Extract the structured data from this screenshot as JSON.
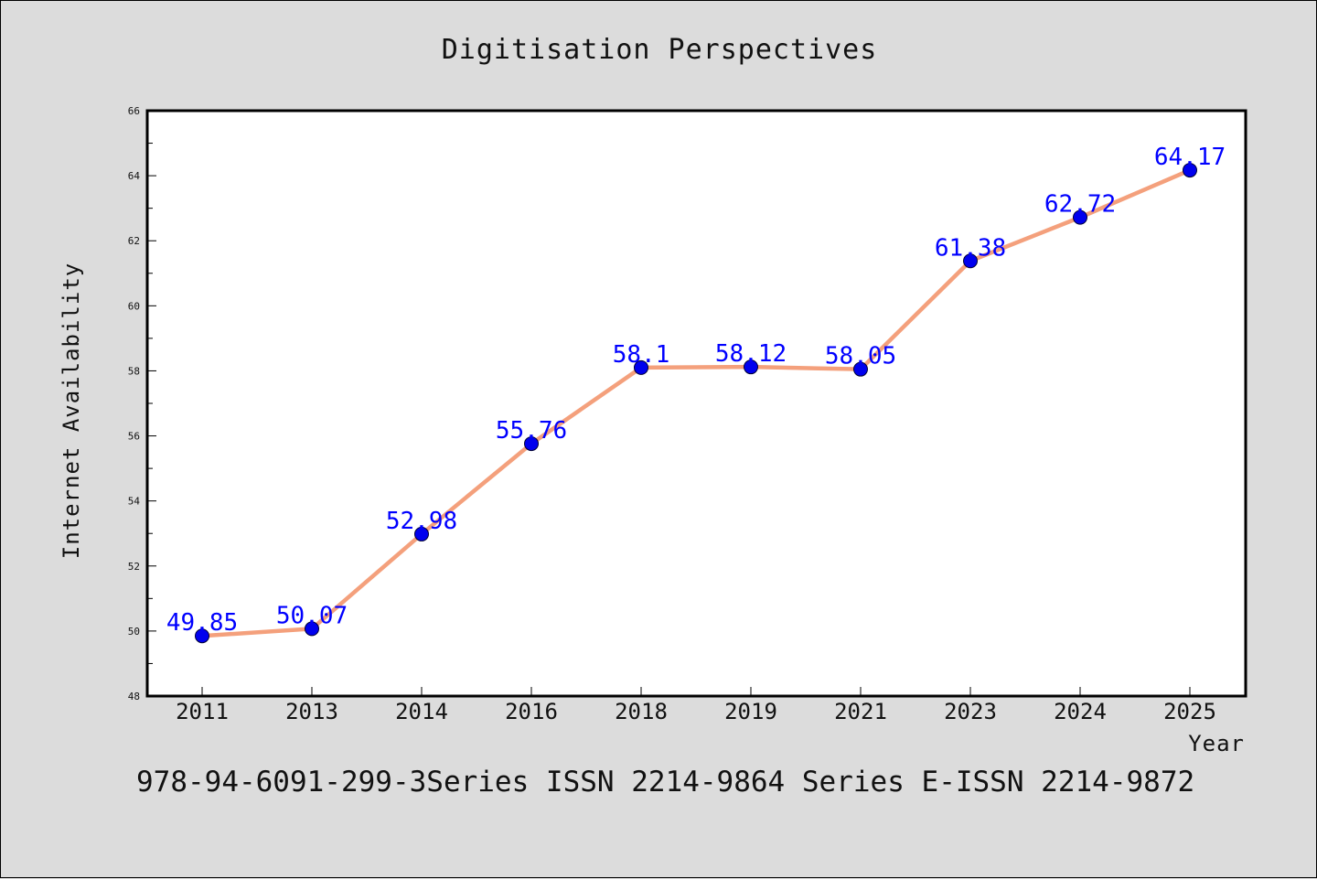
{
  "chart_data": {
    "type": "line",
    "title": "Digitisation Perspectives",
    "xlabel": "Year",
    "ylabel": "Internet Availability",
    "categories": [
      "2011",
      "2013",
      "2014",
      "2016",
      "2018",
      "2019",
      "2021",
      "2023",
      "2024",
      "2025"
    ],
    "series": [
      {
        "values": [
          49.85,
          50.07,
          52.98,
          55.76,
          58.1,
          58.12,
          58.05,
          61.38,
          62.72,
          64.17
        ],
        "labels": [
          "49.85",
          "50.07",
          "52.98",
          "55.76",
          "58.1",
          "58.12",
          "58.05",
          "61.38",
          "62.72",
          "64.17"
        ],
        "line_color": "#f4a07c",
        "marker_color": "#0000ee"
      }
    ],
    "ylim": [
      48,
      66
    ],
    "yticks": [
      48,
      50,
      52,
      54,
      56,
      58,
      60,
      62,
      64,
      66
    ],
    "grid": false,
    "legend": "none"
  },
  "footer": "978-94-6091-299-3Series ISSN 2214-9864 Series E-ISSN 2214-9872"
}
